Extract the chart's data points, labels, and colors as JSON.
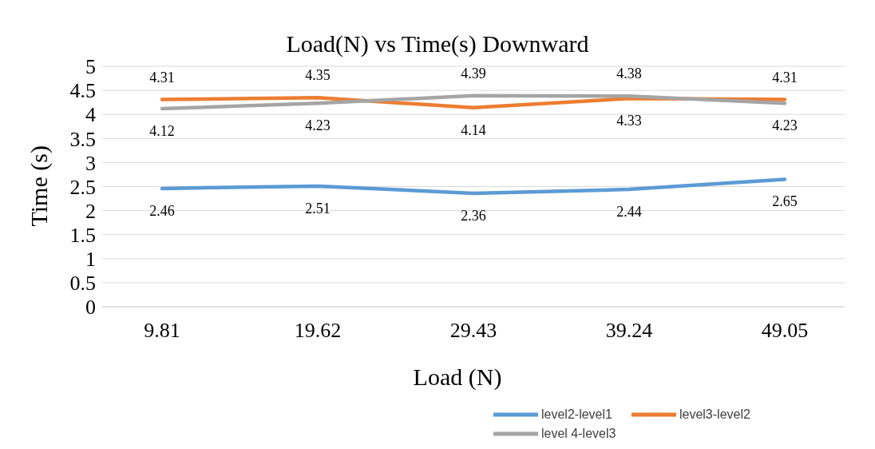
{
  "chart_data": {
    "type": "line",
    "title": "Load(N) vs Time(s) Downward",
    "xlabel": "Load (N)",
    "ylabel": "Time (s)",
    "categories": [
      "9.81",
      "19.62",
      "29.43",
      "39.24",
      "49.05"
    ],
    "series": [
      {
        "name": "level2-level1",
        "color": "#5b9bd5",
        "values": [
          2.46,
          2.51,
          2.36,
          2.44,
          2.65
        ]
      },
      {
        "name": "level3-level2",
        "color": "#ed7d31",
        "values": [
          4.31,
          4.35,
          4.14,
          4.33,
          4.31
        ]
      },
      {
        "name": "level 4-level3",
        "color": "#a5a5a5",
        "values": [
          4.12,
          4.23,
          4.39,
          4.38,
          4.23
        ]
      }
    ],
    "ylim": [
      0,
      5
    ],
    "yticks": [
      0,
      0.5,
      1,
      1.5,
      2,
      2.5,
      3,
      3.5,
      4,
      4.5,
      5
    ],
    "grid": "y",
    "legend": "bottom right",
    "marker": "none",
    "line_style": "solid",
    "data_labels": true
  }
}
